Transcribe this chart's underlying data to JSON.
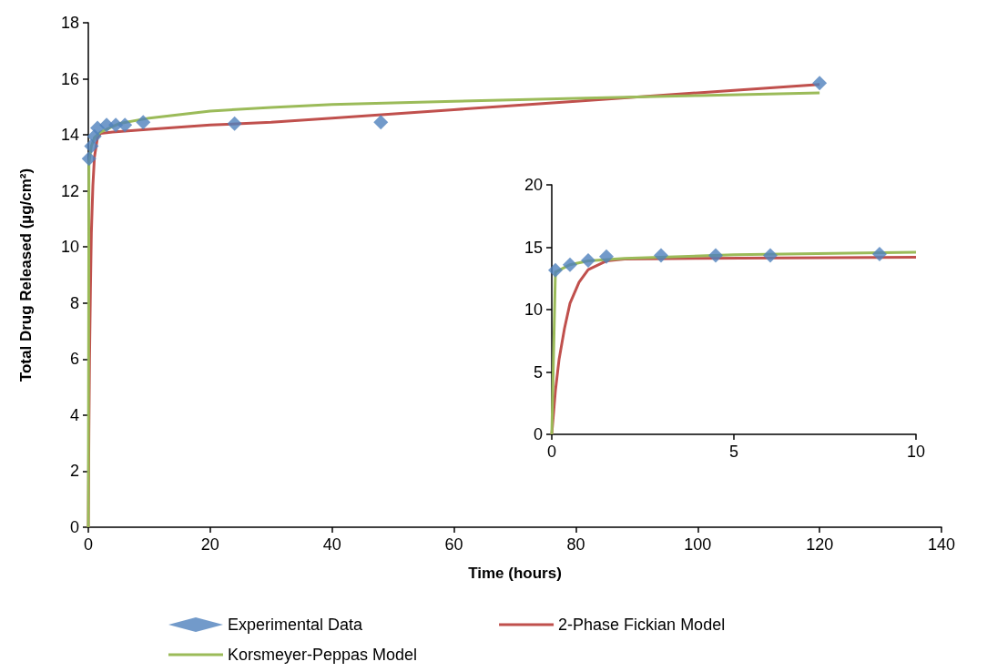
{
  "chart_data": [
    {
      "type": "line",
      "xlabel": "Time (hours)",
      "ylabel": "Total Drug Released (µg/cm²)",
      "xlim": [
        0,
        140
      ],
      "xticks": [
        0,
        20,
        40,
        60,
        80,
        100,
        120,
        140
      ],
      "ylim": [
        0,
        18
      ],
      "yticks": [
        0,
        2,
        4,
        6,
        8,
        10,
        12,
        14,
        16,
        18
      ],
      "grid": false,
      "legend": "bottom",
      "series": [
        {
          "name": "Experimental Data",
          "type": "scatter",
          "marker": "diamond",
          "color": "#4f81bd",
          "x": [
            0.1,
            0.5,
            1,
            1.5,
            3,
            4.5,
            6,
            9,
            24,
            48,
            120
          ],
          "values": [
            13.15,
            13.6,
            13.95,
            14.25,
            14.35,
            14.35,
            14.35,
            14.45,
            14.4,
            14.45,
            15.85
          ]
        },
        {
          "name": "2-Phase Fickian Model",
          "type": "line",
          "marker": "none",
          "color": "#c0504d",
          "x": [
            0,
            0.1,
            0.2,
            0.35,
            0.5,
            0.75,
            1,
            1.5,
            2,
            4,
            10,
            20,
            30,
            40,
            60,
            80,
            100,
            120
          ],
          "values": [
            0,
            3.5,
            6,
            8.5,
            10.5,
            12.2,
            13.2,
            13.9,
            14.05,
            14.1,
            14.2,
            14.35,
            14.45,
            14.6,
            14.9,
            15.2,
            15.5,
            15.8
          ]
        },
        {
          "name": "Korsmeyer-Peppas Model",
          "type": "line",
          "marker": "none",
          "color": "#9bbb59",
          "x": [
            0,
            0.1,
            0.5,
            1,
            2,
            5,
            10,
            20,
            30,
            40,
            60,
            80,
            100,
            120
          ],
          "values": [
            0,
            13,
            13.6,
            13.9,
            14.1,
            14.4,
            14.6,
            14.85,
            14.98,
            15.08,
            15.2,
            15.3,
            15.4,
            15.5
          ]
        }
      ]
    },
    {
      "type": "line",
      "xlim": [
        0,
        10
      ],
      "xticks": [
        0,
        5,
        10
      ],
      "ylim": [
        0,
        20
      ],
      "yticks": [
        0,
        5,
        10,
        15,
        20
      ],
      "grid": false,
      "series": [
        {
          "type": "scatter",
          "marker": "diamond",
          "color": "#4f81bd",
          "x": [
            0.1,
            0.5,
            1,
            1.5,
            3,
            4.5,
            6,
            9
          ],
          "values": [
            13.15,
            13.6,
            13.95,
            14.25,
            14.35,
            14.35,
            14.35,
            14.45
          ]
        },
        {
          "type": "line",
          "marker": "none",
          "color": "#c0504d",
          "x": [
            0,
            0.1,
            0.2,
            0.35,
            0.5,
            0.75,
            1,
            1.5,
            2,
            4,
            10
          ],
          "values": [
            0,
            3.5,
            6,
            8.5,
            10.5,
            12.2,
            13.2,
            13.9,
            14.05,
            14.1,
            14.2
          ]
        },
        {
          "type": "line",
          "marker": "none",
          "color": "#9bbb59",
          "x": [
            0,
            0.1,
            0.5,
            1,
            2,
            5,
            10
          ],
          "values": [
            0,
            13,
            13.6,
            13.9,
            14.1,
            14.4,
            14.6
          ]
        }
      ]
    }
  ]
}
